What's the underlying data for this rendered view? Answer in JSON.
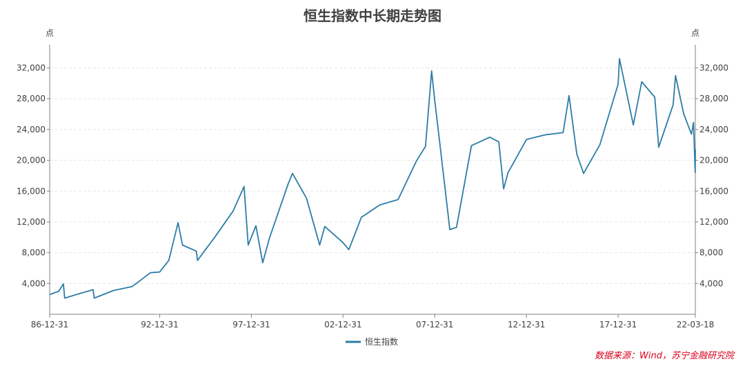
{
  "chart_data": {
    "type": "line",
    "title": "恒生指数中长期走势图",
    "y_unit_left": "点",
    "y_unit_right": "点",
    "ylim": [
      0,
      35000
    ],
    "y_ticks": [
      "4,000",
      "8,000",
      "12,000",
      "16,000",
      "20,000",
      "24,000",
      "28,000",
      "32,000"
    ],
    "y_tick_values": [
      4000,
      8000,
      12000,
      16000,
      20000,
      24000,
      28000,
      32000
    ],
    "x_tick_labels": [
      "86-12-31",
      "92-12-31",
      "97-12-31",
      "02-12-31",
      "07-12-31",
      "12-12-31",
      "17-12-31",
      "22-03-18"
    ],
    "x_tick_values": [
      "1986-12-31",
      "1992-12-31",
      "1997-12-31",
      "2002-12-31",
      "2007-12-31",
      "2012-12-31",
      "2017-12-31",
      "2022-03-18"
    ],
    "grid": true,
    "legend_position": "bottom-center",
    "series": [
      {
        "name": "恒生指数",
        "color": "#2b7ca6",
        "points": [
          [
            "1986-12-31",
            2560
          ],
          [
            "1987-06-30",
            3000
          ],
          [
            "1987-10-01",
            3950
          ],
          [
            "1987-10-27",
            2100
          ],
          [
            "1988-06-30",
            2600
          ],
          [
            "1989-05-15",
            3200
          ],
          [
            "1989-06-05",
            2100
          ],
          [
            "1990-06-30",
            3100
          ],
          [
            "1991-06-30",
            3600
          ],
          [
            "1992-06-30",
            5400
          ],
          [
            "1992-12-31",
            5500
          ],
          [
            "1993-06-30",
            7000
          ],
          [
            "1993-12-31",
            11900
          ],
          [
            "1994-03-31",
            9000
          ],
          [
            "1994-12-31",
            8200
          ],
          [
            "1995-01-23",
            7000
          ],
          [
            "1995-12-31",
            10000
          ],
          [
            "1996-12-31",
            13400
          ],
          [
            "1997-08-07",
            16600
          ],
          [
            "1997-10-28",
            9000
          ],
          [
            "1998-03-31",
            11500
          ],
          [
            "1998-08-13",
            6700
          ],
          [
            "1998-12-31",
            10000
          ],
          [
            "1999-12-31",
            16900
          ],
          [
            "2000-03-28",
            18300
          ],
          [
            "2000-12-31",
            15100
          ],
          [
            "2001-09-21",
            9000
          ],
          [
            "2001-12-31",
            11400
          ],
          [
            "2002-12-31",
            9300
          ],
          [
            "2003-04-25",
            8400
          ],
          [
            "2003-12-31",
            12600
          ],
          [
            "2004-12-31",
            14200
          ],
          [
            "2005-12-31",
            14900
          ],
          [
            "2006-12-31",
            19900
          ],
          [
            "2007-06-30",
            21800
          ],
          [
            "2007-10-30",
            31600
          ],
          [
            "2007-12-31",
            27800
          ],
          [
            "2008-03-31",
            22800
          ],
          [
            "2008-10-27",
            11000
          ],
          [
            "2009-03-09",
            11300
          ],
          [
            "2009-12-31",
            21900
          ],
          [
            "2010-12-31",
            23000
          ],
          [
            "2011-06-30",
            22400
          ],
          [
            "2011-10-04",
            16300
          ],
          [
            "2011-12-31",
            18400
          ],
          [
            "2012-12-31",
            22700
          ],
          [
            "2013-12-31",
            23300
          ],
          [
            "2014-12-31",
            23600
          ],
          [
            "2015-04-28",
            28400
          ],
          [
            "2015-09-30",
            20800
          ],
          [
            "2016-02-12",
            18300
          ],
          [
            "2016-12-31",
            22000
          ],
          [
            "2017-12-31",
            29900
          ],
          [
            "2018-01-26",
            33200
          ],
          [
            "2018-10-30",
            24600
          ],
          [
            "2019-04-15",
            30200
          ],
          [
            "2019-12-31",
            28200
          ],
          [
            "2020-03-19",
            21700
          ],
          [
            "2020-12-31",
            27200
          ],
          [
            "2021-02-17",
            31000
          ],
          [
            "2021-07-30",
            26000
          ],
          [
            "2021-12-31",
            23400
          ],
          [
            "2022-02-10",
            24900
          ],
          [
            "2022-03-15",
            18400
          ],
          [
            "2022-03-18",
            21400
          ]
        ]
      }
    ]
  },
  "source_note": "数据来源：Wind，苏宁金融研究院"
}
